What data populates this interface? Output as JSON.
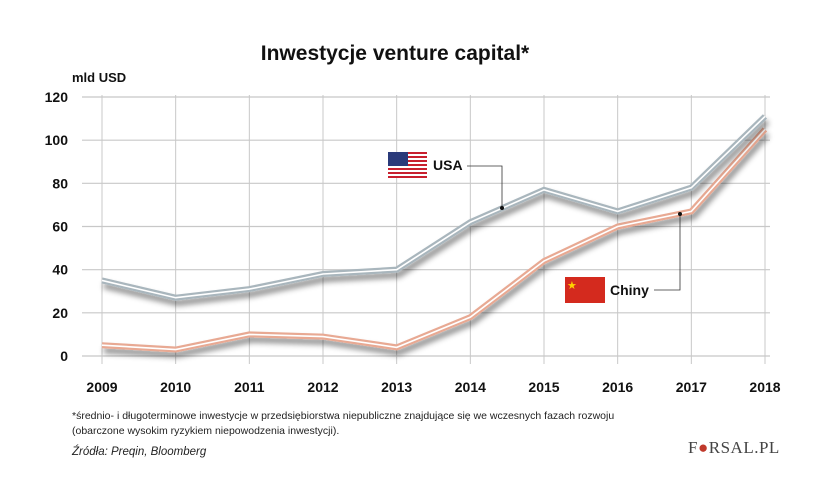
{
  "chart_data": {
    "type": "line",
    "title": "Inwestycje venture capital*",
    "ylabel": "mld USD",
    "xlabel": "",
    "categories": [
      "2009",
      "2010",
      "2011",
      "2012",
      "2013",
      "2014",
      "2015",
      "2016",
      "2017",
      "2018"
    ],
    "ylim": [
      0,
      120
    ],
    "yticks": [
      0,
      20,
      40,
      60,
      80,
      100,
      120
    ],
    "grid": true,
    "series": [
      {
        "name": "USA",
        "values": [
          35,
          27,
          31,
          38,
          40,
          62,
          77,
          67,
          78,
          111
        ],
        "color": "#a9b6bd",
        "icon": "usa-flag-icon"
      },
      {
        "name": "Chiny",
        "values": [
          5,
          3,
          10,
          9,
          4,
          18,
          44,
          60,
          67,
          105
        ],
        "color": "#e8a993",
        "icon": "china-flag-icon"
      }
    ]
  },
  "footnote": {
    "line1": "*średnio- i długoterminowe inwestycje w przedsiębiorstwa niepubliczne znajdujące się we wczesnych fazach rozwoju",
    "line2": "(obarczone wysokim ryzykiem niepowodzenia inwestycji).",
    "source": "Źródła: Preqin, Bloomberg"
  },
  "logo": {
    "text": "FORSAL.PL"
  }
}
